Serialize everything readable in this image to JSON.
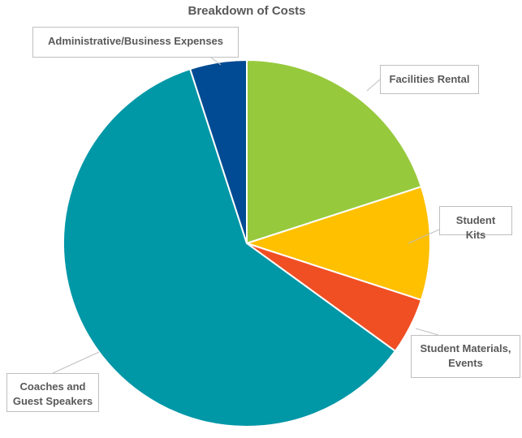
{
  "chart_data": {
    "type": "pie",
    "title": "Breakdown of Costs",
    "categories": [
      "Facilities Rental",
      "Student Kits",
      "Student Materials, Events",
      "Coaches and Guest Speakers",
      "Administrative/Business Expenses"
    ],
    "values": [
      20,
      10,
      5,
      60,
      5
    ],
    "colors": [
      "#97c93d",
      "#ffc000",
      "#f04e23",
      "#0097a7",
      "#004b93"
    ]
  }
}
